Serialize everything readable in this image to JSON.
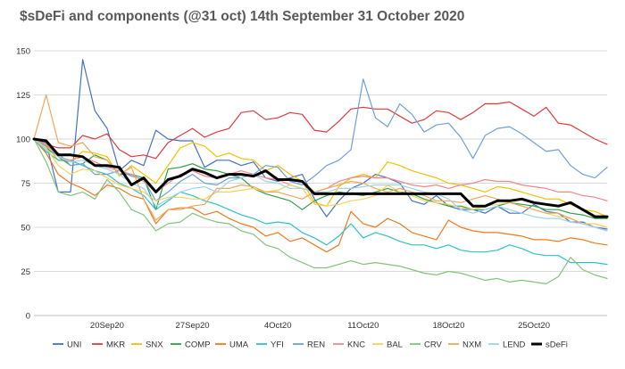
{
  "chart_data": {
    "type": "line",
    "title": "$sDeFi and components (@31 oct) 14th September  31 October 2020",
    "xlabel": "",
    "ylabel": "",
    "ylim": [
      0,
      150
    ],
    "yticks": [
      0,
      25,
      50,
      75,
      100,
      125,
      150
    ],
    "xticks": [
      "20Sep20",
      "27Sep20",
      "4Oct20",
      "11Oct20",
      "18Oct20",
      "25Oct20"
    ],
    "xtick_positions": [
      6,
      13,
      20,
      27,
      34,
      41
    ],
    "x_start": "14Sep20",
    "x_step_days": 1,
    "grid": true,
    "legend_position": "bottom",
    "series": [
      {
        "name": "UNI",
        "color": "#4472c4",
        "width": 1.2,
        "values": [
          100,
          98,
          70,
          70,
          145,
          116,
          106,
          82,
          88,
          85,
          105,
          100,
          99,
          99,
          84,
          88,
          88,
          85,
          87,
          78,
          76,
          78,
          80,
          66,
          56,
          65,
          72,
          75,
          80,
          78,
          75,
          65,
          63,
          68,
          62,
          60,
          60,
          58,
          62,
          58,
          58,
          63,
          59,
          58,
          53,
          53,
          50,
          49
        ]
      },
      {
        "name": "MKR",
        "color": "#e03b3b",
        "width": 1.2,
        "values": [
          100,
          97,
          95,
          95,
          102,
          100,
          103,
          94,
          90,
          91,
          89,
          98,
          102,
          106,
          101,
          104,
          106,
          115,
          116,
          111,
          112,
          115,
          114,
          105,
          104,
          110,
          117,
          118,
          117,
          117,
          113,
          109,
          111,
          116,
          115,
          111,
          115,
          120,
          120,
          121,
          117,
          113,
          118,
          109,
          108,
          104,
          100,
          97
        ]
      },
      {
        "name": "SNX",
        "color": "#f2c200",
        "width": 1.2,
        "values": [
          100,
          96,
          88,
          87,
          93,
          92,
          90,
          79,
          85,
          80,
          75,
          85,
          95,
          98,
          96,
          90,
          92,
          89,
          88,
          82,
          85,
          80,
          76,
          64,
          62,
          73,
          78,
          80,
          78,
          87,
          85,
          82,
          80,
          78,
          75,
          74,
          72,
          70,
          73,
          72,
          70,
          68,
          66,
          66,
          63,
          60,
          59,
          56
        ]
      },
      {
        "name": "COMP",
        "color": "#2ea043",
        "width": 1.2,
        "values": [
          100,
          95,
          90,
          85,
          86,
          91,
          88,
          80,
          80,
          78,
          60,
          83,
          84,
          86,
          83,
          82,
          80,
          78,
          72,
          69,
          67,
          65,
          60,
          65,
          68,
          70,
          69,
          68,
          70,
          72,
          70,
          69,
          66,
          64,
          62,
          62,
          60,
          60,
          62,
          64,
          63,
          62,
          60,
          60,
          58,
          57,
          55,
          55
        ]
      },
      {
        "name": "UMA",
        "color": "#f0791e",
        "width": 1.2,
        "values": [
          100,
          92,
          80,
          75,
          72,
          68,
          74,
          72,
          68,
          66,
          52,
          60,
          61,
          61,
          57,
          59,
          55,
          52,
          50,
          45,
          47,
          42,
          44,
          40,
          36,
          40,
          59,
          52,
          50,
          55,
          52,
          47,
          45,
          43,
          54,
          50,
          48,
          47,
          47,
          46,
          45,
          43,
          43,
          42,
          44,
          43,
          41,
          40
        ]
      },
      {
        "name": "YFI",
        "color": "#2fc1c8",
        "width": 1.2,
        "values": [
          100,
          93,
          88,
          88,
          85,
          82,
          80,
          75,
          72,
          68,
          60,
          65,
          70,
          68,
          65,
          63,
          60,
          57,
          55,
          52,
          53,
          52,
          47,
          44,
          40,
          45,
          52,
          44,
          47,
          45,
          42,
          40,
          40,
          38,
          40,
          37,
          36,
          36,
          37,
          40,
          38,
          35,
          34,
          34,
          30,
          30,
          30,
          29
        ]
      },
      {
        "name": "REN",
        "color": "#6f9fd9",
        "width": 1.2,
        "values": [
          100,
          96,
          92,
          85,
          86,
          80,
          80,
          82,
          79,
          77,
          65,
          70,
          76,
          80,
          75,
          74,
          78,
          78,
          80,
          85,
          84,
          76,
          74,
          79,
          85,
          88,
          94,
          134,
          112,
          107,
          120,
          114,
          104,
          108,
          109,
          101,
          89,
          102,
          106,
          107,
          103,
          98,
          93,
          94,
          85,
          80,
          78,
          84
        ]
      },
      {
        "name": "KNC",
        "color": "#f4878a",
        "width": 1.2,
        "values": [
          100,
          97,
          90,
          88,
          90,
          87,
          84,
          82,
          80,
          76,
          70,
          75,
          80,
          82,
          79,
          78,
          80,
          82,
          80,
          78,
          77,
          74,
          72,
          70,
          72,
          76,
          78,
          79,
          78,
          78,
          76,
          74,
          73,
          74,
          72,
          74,
          75,
          77,
          76,
          76,
          74,
          73,
          72,
          70,
          70,
          68,
          67,
          65
        ]
      },
      {
        "name": "BAL",
        "color": "#f5d25a",
        "width": 1.2,
        "values": [
          100,
          95,
          85,
          80,
          83,
          82,
          78,
          74,
          72,
          70,
          65,
          67,
          67,
          66,
          66,
          70,
          70,
          71,
          72,
          70,
          71,
          74,
          72,
          63,
          62,
          63,
          65,
          66,
          68,
          74,
          70,
          68,
          65,
          64,
          63,
          61,
          60,
          62,
          63,
          64,
          62,
          60,
          58,
          56,
          55,
          52,
          52,
          50
        ]
      },
      {
        "name": "CRV",
        "color": "#82c37c",
        "width": 1.2,
        "values": [
          100,
          87,
          70,
          68,
          70,
          66,
          77,
          70,
          60,
          57,
          48,
          52,
          53,
          58,
          55,
          53,
          52,
          48,
          46,
          40,
          38,
          33,
          30,
          27,
          27,
          29,
          31,
          29,
          30,
          29,
          28,
          26,
          24,
          23,
          25,
          24,
          22,
          20,
          21,
          19,
          20,
          19,
          18,
          22,
          33,
          26,
          23,
          21
        ]
      },
      {
        "name": "NXM",
        "color": "#f2a65a",
        "width": 1.2,
        "values": [
          100,
          125,
          98,
          96,
          98,
          90,
          88,
          80,
          84,
          66,
          54,
          60,
          60,
          62,
          63,
          72,
          72,
          74,
          73,
          70,
          70,
          68,
          66,
          70,
          72,
          74,
          76,
          75,
          72,
          70,
          72,
          70,
          68,
          65,
          65,
          64,
          66,
          68,
          66,
          64,
          62,
          60,
          58,
          58,
          55,
          52,
          50,
          48
        ]
      },
      {
        "name": "LEND",
        "color": "#9fd3e8",
        "width": 1.2,
        "values": [
          100,
          94,
          90,
          87,
          88,
          85,
          83,
          80,
          75,
          72,
          62,
          66,
          70,
          72,
          73,
          70,
          76,
          78,
          80,
          76,
          75,
          72,
          72,
          70,
          70,
          72,
          72,
          73,
          74,
          74,
          74,
          72,
          70,
          69,
          66,
          60,
          58,
          60,
          62,
          60,
          58,
          56,
          55,
          55,
          53,
          52,
          50,
          48
        ]
      },
      {
        "name": "sDeFi",
        "color": "#000000",
        "width": 3,
        "values": [
          100,
          99,
          91,
          91,
          90,
          85,
          85,
          84,
          74,
          78,
          70,
          77,
          79,
          83,
          81,
          78,
          80,
          80,
          79,
          82,
          77,
          77,
          76,
          69,
          69,
          69,
          69,
          69,
          69,
          69,
          69,
          69,
          69,
          69,
          69,
          69,
          62,
          62,
          65,
          65,
          66,
          64,
          63,
          62,
          64,
          60,
          56,
          56
        ]
      }
    ]
  }
}
